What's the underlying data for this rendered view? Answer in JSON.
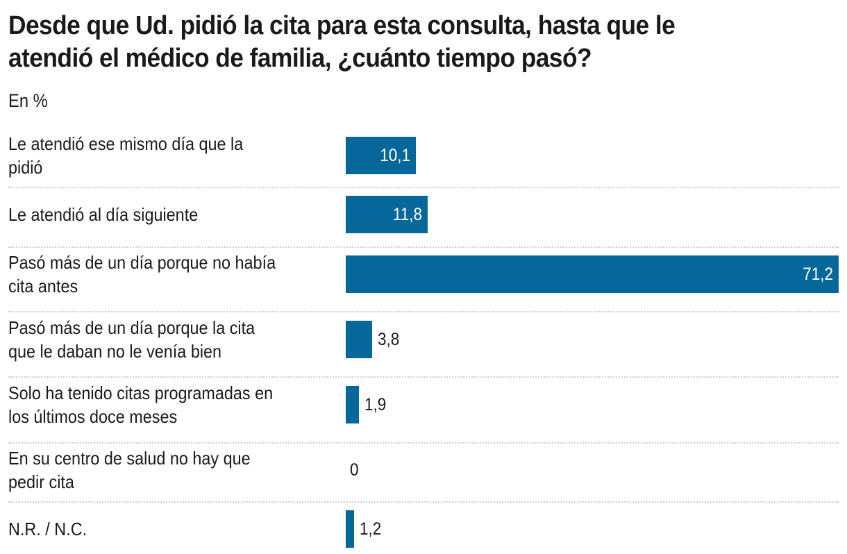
{
  "chart_data": {
    "type": "bar",
    "orientation": "horizontal",
    "title": "Desde que Ud. pidió la cita para esta consulta, hasta que le atendió el médico de familia, ¿cuánto tiempo pasó?",
    "title_lines": [
      "Desde que Ud. pidió la cita para esta consulta, hasta que le",
      "atendió el médico de familia, ¿cuánto tiempo pasó?"
    ],
    "subtitle": "En %",
    "xlabel": "",
    "ylabel": "",
    "xlim": [
      0,
      71.2
    ],
    "grid": false,
    "legend": "none",
    "bar_color": "#06679A",
    "categories": [
      [
        "Le atendió ese mismo día que la",
        "pidió"
      ],
      [
        "Le atendió al día siguiente"
      ],
      [
        "Pasó más de un día porque no había",
        "cita antes"
      ],
      [
        "Pasó más de un día porque la cita",
        "que le daban no le venía bien"
      ],
      [
        "Solo ha tenido citas programadas en",
        "los últimos doce meses"
      ],
      [
        "En su centro de salud no hay que",
        "pedir cita"
      ],
      [
        "N.R. / N.C."
      ]
    ],
    "values": [
      10.1,
      11.8,
      71.2,
      3.8,
      1.9,
      0,
      1.2
    ],
    "value_labels": [
      "10,1",
      "11,8",
      "71,2",
      "3,8",
      "1,9",
      "0",
      "1,2"
    ]
  }
}
